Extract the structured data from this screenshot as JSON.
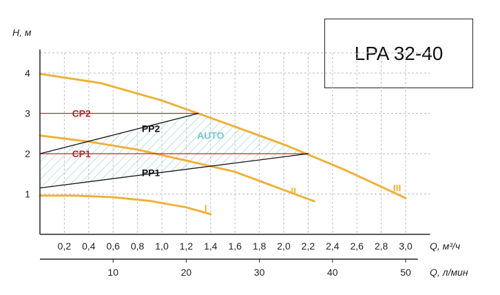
{
  "chart_data": {
    "type": "line",
    "title": "LPA 32-40",
    "ylabel": "H, м",
    "xlabel": "Q, м³/ч",
    "xlabel_secondary": "Q, л/мин",
    "xlim": [
      0,
      3.2
    ],
    "ylim": [
      0,
      4.5
    ],
    "x_ticks": [
      "0,2",
      "0,4",
      "0,6",
      "0,8",
      "1,0",
      "1,2",
      "1,4",
      "1,6",
      "1,8",
      "2,0",
      "2,2",
      "2,4",
      "2,6",
      "2,8",
      "3,0"
    ],
    "x_tick_values": [
      0.2,
      0.4,
      0.6,
      0.8,
      1.0,
      1.2,
      1.4,
      1.6,
      1.8,
      2.0,
      2.2,
      2.4,
      2.6,
      2.8,
      3.0
    ],
    "y_ticks": [
      "1",
      "2",
      "3",
      "4"
    ],
    "y_tick_values": [
      1,
      2,
      3,
      4
    ],
    "secondary_ticks": [
      "10",
      "20",
      "30",
      "40",
      "50"
    ],
    "secondary_tick_values": [
      10,
      20,
      30,
      40,
      50
    ],
    "grid": true,
    "colors": {
      "curve": "#eeb13a",
      "cp": "#b52b2b",
      "pp": "#111111",
      "auto": "#7bc3cf",
      "grid": "#bbbbbb",
      "axis": "#222222"
    },
    "series": [
      {
        "name": "I",
        "kind": "curve",
        "x": [
          0,
          0.3,
          0.6,
          0.9,
          1.2,
          1.4
        ],
        "y": [
          0.96,
          0.96,
          0.92,
          0.83,
          0.67,
          0.5
        ]
      },
      {
        "name": "II",
        "kind": "curve",
        "x": [
          0,
          0.4,
          0.8,
          1.2,
          1.6,
          2.0,
          2.25
        ],
        "y": [
          2.45,
          2.3,
          2.1,
          1.83,
          1.55,
          1.1,
          0.82
        ]
      },
      {
        "name": "III",
        "kind": "curve",
        "x": [
          0,
          0.5,
          1.0,
          1.5,
          2.0,
          2.5,
          3.0
        ],
        "y": [
          3.98,
          3.75,
          3.32,
          2.78,
          2.23,
          1.6,
          0.9
        ]
      },
      {
        "name": "CP2",
        "kind": "cp",
        "x": [
          0,
          1.3
        ],
        "y": [
          3.0,
          3.0
        ]
      },
      {
        "name": "CP1",
        "kind": "cp",
        "x": [
          0,
          2.2
        ],
        "y": [
          2.0,
          2.0
        ]
      },
      {
        "name": "PP2",
        "kind": "pp",
        "x": [
          0,
          1.3
        ],
        "y": [
          2.0,
          3.0
        ]
      },
      {
        "name": "PP1",
        "kind": "pp",
        "x": [
          0,
          2.2
        ],
        "y": [
          1.15,
          2.0
        ]
      }
    ],
    "auto_region": {
      "label": "AUTO",
      "x": [
        0,
        1.3,
        2.2,
        0
      ],
      "y": [
        2.0,
        3.0,
        2.0,
        1.15
      ]
    },
    "labels": [
      {
        "text": "CP2",
        "x": 0.34,
        "y": 3.0,
        "color": "cp"
      },
      {
        "text": "CP1",
        "x": 0.34,
        "y": 2.0,
        "color": "cp"
      },
      {
        "text": "PP2",
        "x": 0.91,
        "y": 2.62,
        "color": "pp"
      },
      {
        "text": "PP1",
        "x": 0.91,
        "y": 1.53,
        "color": "pp"
      },
      {
        "text": "AUTO",
        "x": 1.4,
        "y": 2.45,
        "color": "auto"
      },
      {
        "text": "I",
        "x": 1.36,
        "y": 0.65,
        "color": "curve"
      },
      {
        "text": "II",
        "x": 2.08,
        "y": 1.08,
        "color": "curve"
      },
      {
        "text": "III",
        "x": 2.93,
        "y": 1.15,
        "color": "curve"
      }
    ]
  }
}
